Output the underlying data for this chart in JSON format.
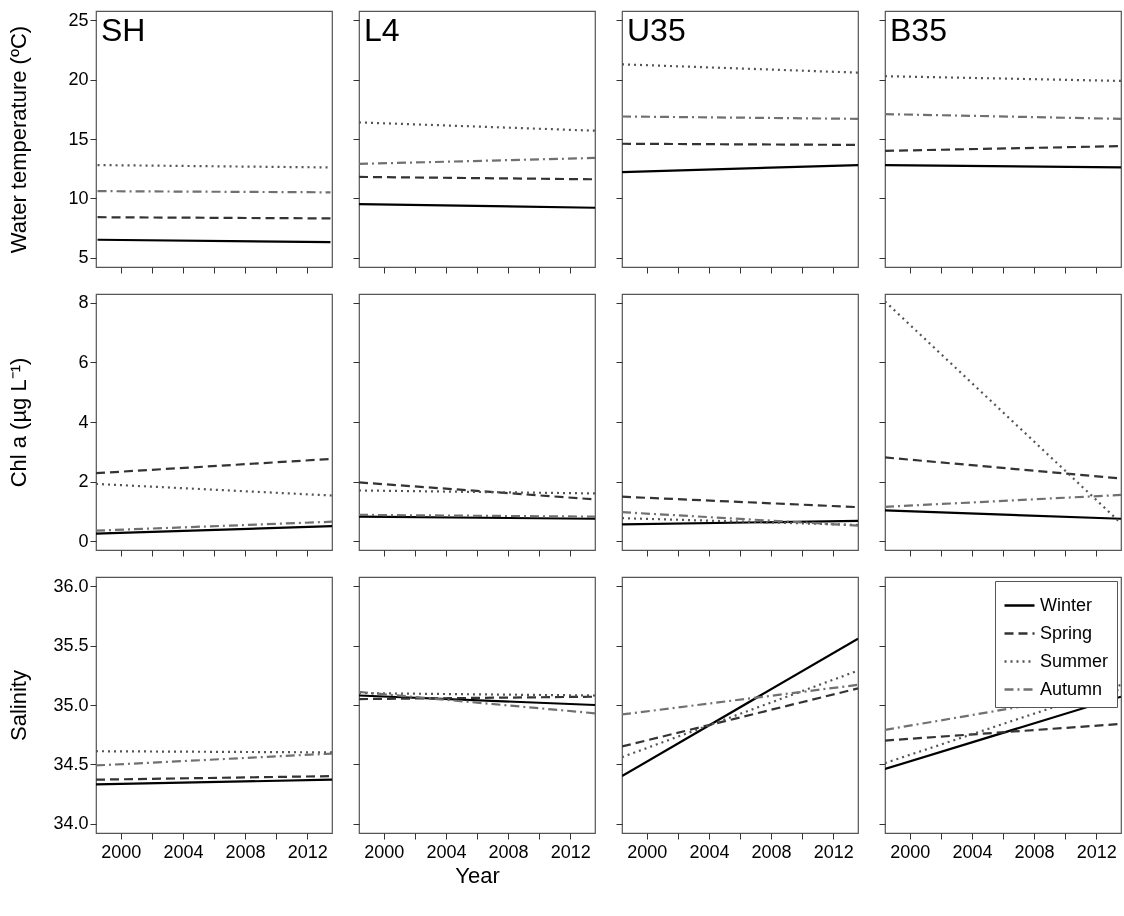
{
  "chart_data": [
    {
      "type": "line",
      "title": "SH",
      "ylabel": "Water temperature (ºC)",
      "x": [
        1998.5,
        2013.5
      ],
      "xlim": [
        1998.4,
        2013.6
      ],
      "xticks": [
        2000,
        {
          "value": 2002,
          "label": null
        },
        2004,
        {
          "value": 2006,
          "label": null
        },
        2008,
        {
          "value": 2010,
          "label": null
        },
        2012
      ],
      "ylim": [
        4.2,
        25.8
      ],
      "yticks": [
        5,
        10,
        15,
        20,
        25
      ],
      "tick_labels": "y",
      "series": [
        {
          "color": "#000000",
          "line_style": "solid",
          "values": [
            6.5,
            6.3
          ]
        },
        {
          "color": "#333333",
          "line_style": "dashed",
          "values": [
            8.4,
            8.3
          ]
        },
        {
          "color": "#555555",
          "line_style": "dotted",
          "values": [
            12.8,
            12.6
          ]
        },
        {
          "color": "#707070",
          "line_style": "dashdot",
          "values": [
            10.6,
            10.5
          ]
        }
      ]
    },
    {
      "type": "line",
      "title": "L4",
      "x": [
        1998.4,
        2013.6
      ],
      "xlim": [
        1998.4,
        2013.6
      ],
      "xticks": [
        2000,
        {
          "value": 2002,
          "label": null
        },
        2004,
        {
          "value": 2006,
          "label": null
        },
        2008,
        {
          "value": 2010,
          "label": null
        },
        2012
      ],
      "ylim": [
        4.2,
        25.8
      ],
      "yticks": [
        5,
        10,
        15,
        20,
        25
      ],
      "tick_labels": false,
      "series": [
        {
          "color": "#000000",
          "line_style": "solid",
          "values": [
            9.5,
            9.2
          ]
        },
        {
          "color": "#333333",
          "line_style": "dashed",
          "values": [
            11.8,
            11.6
          ]
        },
        {
          "color": "#555555",
          "line_style": "dotted",
          "values": [
            16.4,
            15.7
          ]
        },
        {
          "color": "#707070",
          "line_style": "dashdot",
          "values": [
            12.9,
            13.4
          ]
        }
      ]
    },
    {
      "type": "line",
      "title": "U35",
      "x": [
        1998.4,
        2013.6
      ],
      "xlim": [
        1998.4,
        2013.6
      ],
      "xticks": [
        2000,
        {
          "value": 2002,
          "label": null
        },
        2004,
        {
          "value": 2006,
          "label": null
        },
        2008,
        {
          "value": 2010,
          "label": null
        },
        2012
      ],
      "ylim": [
        4.2,
        25.8
      ],
      "yticks": [
        5,
        10,
        15,
        20,
        25
      ],
      "tick_labels": false,
      "series": [
        {
          "color": "#000000",
          "line_style": "solid",
          "values": [
            12.2,
            12.8
          ]
        },
        {
          "color": "#333333",
          "line_style": "dashed",
          "values": [
            14.6,
            14.5
          ]
        },
        {
          "color": "#555555",
          "line_style": "dotted",
          "values": [
            21.3,
            20.6
          ]
        },
        {
          "color": "#707070",
          "line_style": "dashdot",
          "values": [
            16.9,
            16.7
          ]
        }
      ]
    },
    {
      "type": "line",
      "title": "B35",
      "x": [
        1998.4,
        2013.6
      ],
      "xlim": [
        1998.4,
        2013.6
      ],
      "xticks": [
        2000,
        {
          "value": 2002,
          "label": null
        },
        2004,
        {
          "value": 2006,
          "label": null
        },
        2008,
        {
          "value": 2010,
          "label": null
        },
        2012
      ],
      "ylim": [
        4.2,
        25.8
      ],
      "yticks": [
        5,
        10,
        15,
        20,
        25
      ],
      "tick_labels": false,
      "series": [
        {
          "color": "#000000",
          "line_style": "solid",
          "values": [
            12.8,
            12.6
          ]
        },
        {
          "color": "#333333",
          "line_style": "dashed",
          "values": [
            14.0,
            14.4
          ]
        },
        {
          "color": "#555555",
          "line_style": "dotted",
          "values": [
            20.3,
            19.9
          ]
        },
        {
          "color": "#707070",
          "line_style": "dashdot",
          "values": [
            17.1,
            16.7
          ]
        }
      ]
    },
    {
      "type": "line",
      "ylabel": "Chl a (µg L⁻¹)",
      "x": [
        1998.4,
        2013.6
      ],
      "xlim": [
        1998.4,
        2013.6
      ],
      "xticks": [
        2000,
        {
          "value": 2002,
          "label": null
        },
        2004,
        {
          "value": 2006,
          "label": null
        },
        2008,
        {
          "value": 2010,
          "label": null
        },
        2012
      ],
      "ylim": [
        -0.3,
        8.3
      ],
      "yticks": [
        0,
        2,
        4,
        6,
        8
      ],
      "tick_labels": "y",
      "series": [
        {
          "color": "#000000",
          "line_style": "solid",
          "values": [
            0.25,
            0.5
          ]
        },
        {
          "color": "#333333",
          "line_style": "dashed",
          "values": [
            2.28,
            2.76
          ]
        },
        {
          "color": "#555555",
          "line_style": "dotted",
          "values": [
            1.92,
            1.53
          ]
        },
        {
          "color": "#707070",
          "line_style": "dashdot",
          "values": [
            0.35,
            0.65
          ]
        }
      ]
    },
    {
      "type": "line",
      "x": [
        1998.4,
        2013.6
      ],
      "xlim": [
        1998.4,
        2013.6
      ],
      "xticks": [
        2000,
        {
          "value": 2002,
          "label": null
        },
        2004,
        {
          "value": 2006,
          "label": null
        },
        2008,
        {
          "value": 2010,
          "label": null
        },
        2012
      ],
      "ylim": [
        -0.3,
        8.3
      ],
      "yticks": [
        0,
        2,
        4,
        6,
        8
      ],
      "tick_labels": false,
      "series": [
        {
          "color": "#000000",
          "line_style": "solid",
          "values": [
            0.82,
            0.75
          ]
        },
        {
          "color": "#333333",
          "line_style": "dashed",
          "values": [
            1.97,
            1.4
          ]
        },
        {
          "color": "#555555",
          "line_style": "dotted",
          "values": [
            1.7,
            1.6
          ]
        },
        {
          "color": "#707070",
          "line_style": "dashdot",
          "values": [
            0.88,
            0.82
          ]
        }
      ]
    },
    {
      "type": "line",
      "x": [
        1998.4,
        2013.6
      ],
      "xlim": [
        1998.4,
        2013.6
      ],
      "xticks": [
        2000,
        {
          "value": 2002,
          "label": null
        },
        2004,
        {
          "value": 2006,
          "label": null
        },
        2008,
        {
          "value": 2010,
          "label": null
        },
        2012
      ],
      "ylim": [
        -0.3,
        8.3
      ],
      "yticks": [
        0,
        2,
        4,
        6,
        8
      ],
      "tick_labels": false,
      "series": [
        {
          "color": "#000000",
          "line_style": "solid",
          "values": [
            0.56,
            0.68
          ]
        },
        {
          "color": "#333333",
          "line_style": "dashed",
          "values": [
            1.49,
            1.14
          ]
        },
        {
          "color": "#555555",
          "line_style": "dotted",
          "values": [
            0.77,
            0.54
          ]
        },
        {
          "color": "#707070",
          "line_style": "dashdot",
          "values": [
            0.97,
            0.52
          ]
        }
      ]
    },
    {
      "type": "line",
      "x": [
        1998.4,
        2013.6
      ],
      "xlim": [
        1998.4,
        2013.6
      ],
      "xticks": [
        2000,
        {
          "value": 2002,
          "label": null
        },
        2004,
        {
          "value": 2006,
          "label": null
        },
        2008,
        {
          "value": 2010,
          "label": null
        },
        2012
      ],
      "ylim": [
        -0.3,
        8.3
      ],
      "yticks": [
        0,
        2,
        4,
        6,
        8
      ],
      "tick_labels": false,
      "series": [
        {
          "color": "#000000",
          "line_style": "solid",
          "values": [
            1.03,
            0.75
          ]
        },
        {
          "color": "#333333",
          "line_style": "dashed",
          "values": [
            2.81,
            2.1
          ]
        },
        {
          "color": "#555555",
          "line_style": "dotted",
          "values": [
            8.05,
            0.6
          ]
        },
        {
          "color": "#707070",
          "line_style": "dashdot",
          "values": [
            1.15,
            1.55
          ]
        }
      ]
    },
    {
      "type": "line",
      "ylabel": "Salinity",
      "x": [
        1998.4,
        2013.6
      ],
      "xlim": [
        1998.4,
        2013.6
      ],
      "xticks": [
        2000,
        {
          "value": 2002,
          "label": null
        },
        2004,
        {
          "value": 2006,
          "label": null
        },
        2008,
        {
          "value": 2010,
          "label": null
        },
        2012
      ],
      "ylim": [
        33.92,
        36.08
      ],
      "yticks": [
        {
          "value": 34,
          "label": "34.0"
        },
        {
          "value": 34.5,
          "label": "34.5"
        },
        {
          "value": 35,
          "label": "35.0"
        },
        {
          "value": 35.5,
          "label": "35.5"
        },
        {
          "value": 36,
          "label": "36.0"
        }
      ],
      "series": [
        {
          "color": "#000000",
          "line_style": "solid",
          "values": [
            34.33,
            34.37
          ]
        },
        {
          "color": "#333333",
          "line_style": "dashed",
          "values": [
            34.37,
            34.4
          ]
        },
        {
          "color": "#555555",
          "line_style": "dotted",
          "values": [
            34.61,
            34.6
          ]
        },
        {
          "color": "#707070",
          "line_style": "dashdot",
          "values": [
            34.49,
            34.59
          ]
        }
      ]
    },
    {
      "type": "line",
      "xlabel": "Year",
      "x": [
        1998.4,
        2013.6
      ],
      "xlim": [
        1998.4,
        2013.6
      ],
      "xticks": [
        2000,
        {
          "value": 2002,
          "label": null
        },
        2004,
        {
          "value": 2006,
          "label": null
        },
        2008,
        {
          "value": 2010,
          "label": null
        },
        2012
      ],
      "ylim": [
        33.92,
        36.08
      ],
      "yticks": [
        34,
        34.5,
        35,
        35.5,
        36
      ],
      "tick_labels": "x",
      "series": [
        {
          "color": "#000000",
          "line_style": "solid",
          "values": [
            35.08,
            35.0
          ]
        },
        {
          "color": "#333333",
          "line_style": "dashed",
          "values": [
            35.05,
            35.07
          ]
        },
        {
          "color": "#555555",
          "line_style": "dotted",
          "values": [
            35.1,
            35.08
          ]
        },
        {
          "color": "#707070",
          "line_style": "dashdot",
          "values": [
            35.11,
            34.93
          ]
        }
      ]
    },
    {
      "type": "line",
      "x": [
        1998.4,
        2013.6
      ],
      "xlim": [
        1998.4,
        2013.6
      ],
      "xticks": [
        2000,
        {
          "value": 2002,
          "label": null
        },
        2004,
        {
          "value": 2006,
          "label": null
        },
        2008,
        {
          "value": 2010,
          "label": null
        },
        2012
      ],
      "ylim": [
        33.92,
        36.08
      ],
      "yticks": [
        34,
        34.5,
        35,
        35.5,
        36
      ],
      "tick_labels": "x",
      "series": [
        {
          "color": "#000000",
          "line_style": "solid",
          "values": [
            34.4,
            35.56
          ]
        },
        {
          "color": "#333333",
          "line_style": "dashed",
          "values": [
            34.65,
            35.14
          ]
        },
        {
          "color": "#555555",
          "line_style": "dotted",
          "values": [
            34.56,
            35.29
          ]
        },
        {
          "color": "#707070",
          "line_style": "dashdot",
          "values": [
            34.92,
            35.17
          ]
        }
      ]
    },
    {
      "type": "line",
      "x": [
        1998.4,
        2013.6
      ],
      "xlim": [
        1998.4,
        2013.6
      ],
      "xticks": [
        2000,
        {
          "value": 2002,
          "label": null
        },
        2004,
        {
          "value": 2006,
          "label": null
        },
        2008,
        {
          "value": 2010,
          "label": null
        },
        2012
      ],
      "ylim": [
        33.92,
        36.08
      ],
      "yticks": [
        34,
        34.5,
        35,
        35.5,
        36
      ],
      "tick_labels": "x",
      "legend": "top right",
      "series": [
        {
          "name": "Winter",
          "color": "#000000",
          "line_style": "solid",
          "values": [
            34.46,
            35.07
          ]
        },
        {
          "name": "Spring",
          "color": "#333333",
          "line_style": "dashed",
          "values": [
            34.7,
            34.84
          ]
        },
        {
          "name": "Summer",
          "color": "#555555",
          "line_style": "dotted",
          "values": [
            34.51,
            35.17
          ]
        },
        {
          "name": "Autumn",
          "color": "#707070",
          "line_style": "dashdot",
          "values": [
            34.79,
            35.13
          ]
        }
      ]
    }
  ]
}
